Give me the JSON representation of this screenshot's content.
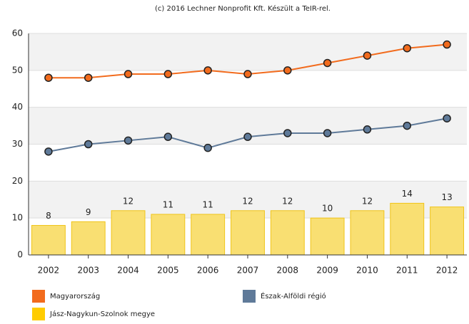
{
  "chart_data": {
    "type": "combo",
    "title": "(c) 2016 Lechner Nonprofit Kft. Készült a TeIR-rel.",
    "categories": [
      "2002",
      "2003",
      "2004",
      "2005",
      "2006",
      "2007",
      "2008",
      "2009",
      "2010",
      "2011",
      "2012"
    ],
    "series": [
      {
        "name": "Magyarország",
        "type": "line",
        "color": "#f26b1d",
        "values": [
          48,
          48,
          49,
          49,
          50,
          49,
          50,
          52,
          54,
          56,
          57
        ]
      },
      {
        "name": "Észak-Alföldi régió",
        "type": "line",
        "color": "#5f7a99",
        "values": [
          28,
          30,
          31,
          32,
          29,
          32,
          33,
          33,
          34,
          35,
          37
        ]
      },
      {
        "name": "Jász-Nagykun-Szolnok megye",
        "type": "bar",
        "color": "#f9df72",
        "values": [
          8,
          9,
          12,
          11,
          11,
          12,
          12,
          10,
          12,
          14,
          13
        ]
      }
    ],
    "ylim": [
      0,
      60
    ],
    "yticks": [
      0,
      10,
      20,
      30,
      40,
      50,
      60
    ],
    "grid": true
  }
}
